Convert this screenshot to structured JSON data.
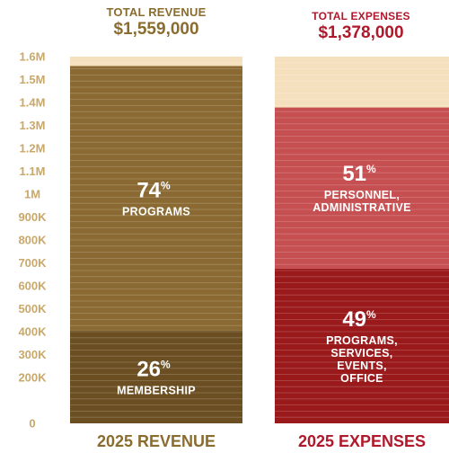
{
  "chart_data": {
    "type": "bar",
    "stacked": true,
    "ylim": [
      0,
      1600000
    ],
    "y_ticks": [
      {
        "value": 0,
        "label": "0"
      },
      {
        "value": 200000,
        "label": "200K"
      },
      {
        "value": 300000,
        "label": "300K"
      },
      {
        "value": 400000,
        "label": "400K"
      },
      {
        "value": 500000,
        "label": "500K"
      },
      {
        "value": 600000,
        "label": "600K"
      },
      {
        "value": 700000,
        "label": "700K"
      },
      {
        "value": 800000,
        "label": "800K"
      },
      {
        "value": 900000,
        "label": "900K"
      },
      {
        "value": 1000000,
        "label": "1M"
      },
      {
        "value": 1100000,
        "label": "1.1M"
      },
      {
        "value": 1200000,
        "label": "1.2M"
      },
      {
        "value": 1300000,
        "label": "1.3M"
      },
      {
        "value": 1400000,
        "label": "1.4M"
      },
      {
        "value": 1500000,
        "label": "1.5M"
      },
      {
        "value": 1600000,
        "label": "1.6M"
      }
    ],
    "bars": [
      {
        "key": "revenue",
        "header_label": "TOTAL REVENUE",
        "header_amount": "$1,559,000",
        "footer_label": "2025 REVENUE",
        "total": 1559000,
        "segments": [
          {
            "pct": "26",
            "label_lines": [
              "MEMBERSHIP"
            ],
            "value": 405000,
            "color": "#6b4f22"
          },
          {
            "pct": "74",
            "label_lines": [
              "PROGRAMS"
            ],
            "value": 1154000,
            "color": "#8a6a32"
          }
        ]
      },
      {
        "key": "expenses",
        "header_label": "TOTAL EXPENSES",
        "header_amount": "$1,378,000",
        "footer_label": "2025 EXPENSES",
        "total": 1378000,
        "segments": [
          {
            "pct": "49",
            "label_lines": [
              "PROGRAMS,",
              "SERVICES,",
              "EVENTS,",
              "OFFICE"
            ],
            "value": 675000,
            "color": "#9a1a1c"
          },
          {
            "pct": "51",
            "label_lines": [
              "PERSONNEL,",
              "ADMINISTRATIVE"
            ],
            "value": 703000,
            "color": "#c54f51"
          }
        ]
      }
    ],
    "pct_symbol": "%",
    "colors": {
      "bar_background": "#f5e0bd",
      "gridline": "#ffffff",
      "tick_label": "#c9a86a",
      "revenue_text": "#8a6c2e",
      "expenses_text": "#b0182b"
    }
  }
}
